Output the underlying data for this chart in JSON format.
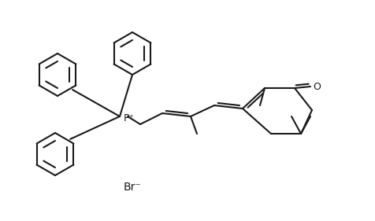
{
  "bg_color": "#ffffff",
  "line_color": "#1a1a1a",
  "line_width": 1.5,
  "text_color": "#1a1a1a",
  "br_label": "Br⁻",
  "p_label": "P⁺",
  "o_label": "O",
  "figsize": [
    4.77,
    2.81
  ],
  "dpi": 100
}
